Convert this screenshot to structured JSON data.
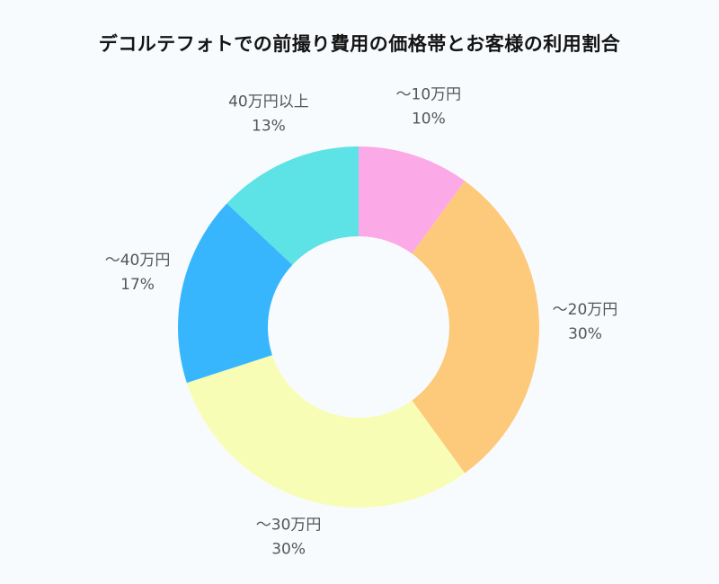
{
  "chart_data": {
    "type": "pie",
    "title": "デコルテフォトでの前撮り費用の価格帯とお客様の利用割合",
    "categories": [
      "〜10万円",
      "〜20万円",
      "〜30万円",
      "〜40万円",
      "40万円以上"
    ],
    "values": [
      10,
      30,
      30,
      17,
      13
    ],
    "value_labels": [
      "10%",
      "30%",
      "30%",
      "17%",
      "13%"
    ],
    "colors": [
      "#fca9e8",
      "#fdc97a",
      "#f8fdb5",
      "#38b6fd",
      "#5de2e6"
    ],
    "donut": true,
    "legend": "none",
    "grid": false
  }
}
